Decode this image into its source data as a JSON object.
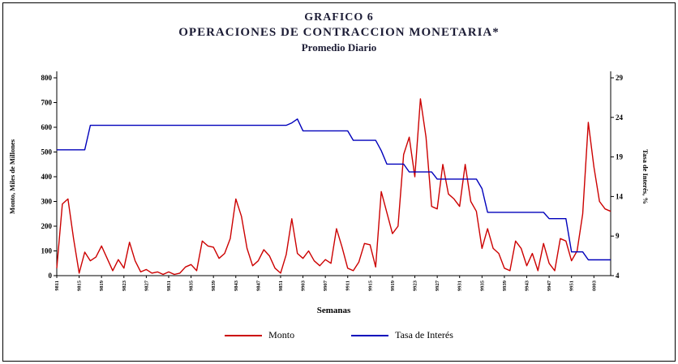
{
  "header": {
    "line1": "GRAFICO 6",
    "line2": "OPERACIONES DE CONTRACCION MONETARIA*",
    "line3": "Promedio Diario"
  },
  "chart_data": {
    "type": "line",
    "title": "GRAFICO 6 - OPERACIONES DE CONTRACCION MONETARIA* - Promedio Diario",
    "xlabel": "Semanas",
    "x_tick_every": 4,
    "left_axis": {
      "title": "Monto, Miles de Millones",
      "min": 0,
      "max": 800,
      "ticks": [
        0,
        100,
        200,
        300,
        400,
        500,
        600,
        700,
        800
      ]
    },
    "right_axis": {
      "title": "Tasa de Interés, %",
      "min": 4,
      "max": 29,
      "ticks": [
        4,
        9,
        14,
        19,
        24,
        29
      ]
    },
    "x_labels": [
      "9811",
      "9812",
      "9813",
      "9814",
      "9815",
      "9816",
      "9817",
      "9818",
      "9819",
      "9820",
      "9821",
      "9822",
      "9823",
      "9824",
      "9825",
      "9826",
      "9827",
      "9828",
      "9829",
      "9830",
      "9831",
      "9832",
      "9833",
      "9834",
      "9835",
      "9836",
      "9837",
      "9838",
      "9839",
      "9840",
      "9841",
      "9842",
      "9843",
      "9844",
      "9845",
      "9846",
      "9847",
      "9848",
      "9849",
      "9850",
      "9851",
      "9852",
      "9901",
      "9902",
      "9903",
      "9904",
      "9905",
      "9906",
      "9907",
      "9908",
      "9909",
      "9910",
      "9911",
      "9912",
      "9913",
      "9914",
      "9915",
      "9916",
      "9917",
      "9918",
      "9919",
      "9920",
      "9921",
      "9922",
      "9923",
      "9924",
      "9925",
      "9926",
      "9927",
      "9928",
      "9929",
      "9930",
      "9931",
      "9932",
      "9933",
      "9934",
      "9935",
      "9936",
      "9937",
      "9938",
      "9939",
      "9940",
      "9941",
      "9942",
      "9943",
      "9944",
      "9945",
      "9946",
      "9947",
      "9948",
      "9949",
      "9950",
      "9951",
      "9952",
      "0001",
      "0002",
      "0003",
      "0004",
      "0005",
      "0006"
    ],
    "series": [
      {
        "name": "Monto",
        "color": "#cc0000",
        "axis": "left",
        "values": [
          30,
          290,
          310,
          150,
          10,
          95,
          60,
          75,
          120,
          70,
          20,
          65,
          30,
          135,
          60,
          15,
          25,
          10,
          15,
          5,
          15,
          5,
          10,
          35,
          45,
          20,
          140,
          120,
          115,
          70,
          90,
          150,
          310,
          240,
          110,
          40,
          60,
          105,
          80,
          30,
          10,
          85,
          230,
          90,
          70,
          100,
          60,
          40,
          65,
          50,
          190,
          115,
          30,
          20,
          55,
          130,
          125,
          35,
          340,
          255,
          170,
          200,
          490,
          560,
          400,
          715,
          560,
          280,
          270,
          450,
          330,
          310,
          280,
          450,
          300,
          260,
          110,
          190,
          110,
          90,
          30,
          20,
          140,
          110,
          40,
          90,
          20,
          130,
          50,
          20,
          150,
          140,
          60,
          100,
          250,
          620,
          440,
          300,
          270,
          260
        ]
      },
      {
        "name": "Tasa de Interés",
        "color": "#0000bb",
        "axis": "right",
        "values": [
          19.9,
          19.9,
          19.9,
          19.9,
          19.9,
          19.9,
          23,
          23,
          23,
          23,
          23,
          23,
          23,
          23,
          23,
          23,
          23,
          23,
          23,
          23,
          23,
          23,
          23,
          23,
          23,
          23,
          23,
          23,
          23,
          23,
          23,
          23,
          23,
          23,
          23,
          23,
          23,
          23,
          23,
          23,
          23,
          23,
          23.3,
          23.8,
          22.3,
          22.3,
          22.3,
          22.3,
          22.3,
          22.3,
          22.3,
          22.3,
          22.3,
          21.1,
          21.1,
          21.1,
          21.1,
          21.1,
          19.8,
          18.1,
          18.1,
          18.1,
          18.1,
          17.1,
          17.1,
          17.1,
          17.1,
          17.1,
          16.2,
          16.2,
          16.2,
          16.2,
          16.2,
          16.2,
          16.2,
          16.2,
          15,
          12,
          12,
          12,
          12,
          12,
          12,
          12,
          12,
          12,
          12,
          12,
          11.2,
          11.2,
          11.2,
          11.2,
          7,
          7,
          7,
          6,
          6,
          6,
          6,
          6
        ]
      }
    ],
    "legend_position": "bottom",
    "grid": false
  }
}
